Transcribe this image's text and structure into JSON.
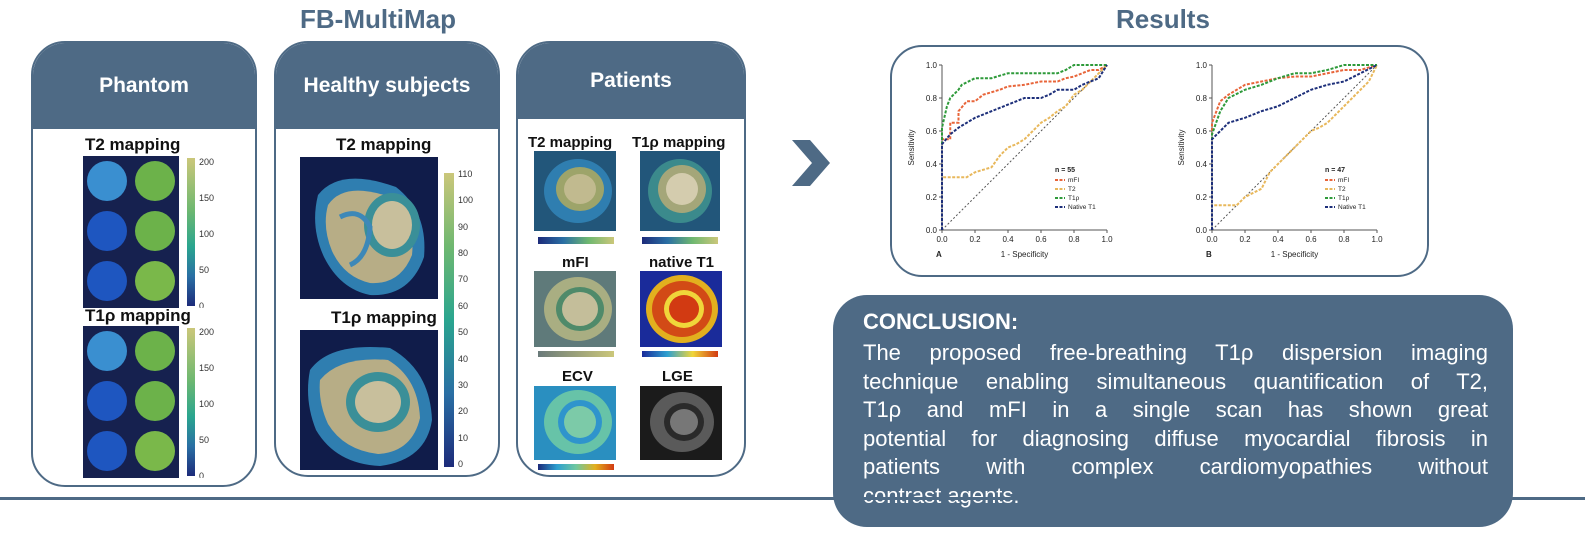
{
  "titles": {
    "left": "FB-MultiMap",
    "right": "Results"
  },
  "phantom": {
    "header": "Phantom",
    "t2_label": "T2 mapping",
    "t1rho_label": "T1ρ mapping",
    "colorbar_ticks": [
      "200",
      "150",
      "100",
      "50",
      "0"
    ],
    "vials": [
      [
        "#3a8fd0",
        "#6cb24a"
      ],
      [
        "#1e56c0",
        "#6cb24a"
      ],
      [
        "#1e56c0",
        "#7ab84a"
      ]
    ]
  },
  "healthy": {
    "header": "Healthy subjects",
    "t2_label": "T2 mapping",
    "t1rho_label": "T1ρ mapping",
    "colorbar_ticks": [
      "110",
      "100",
      "90",
      "80",
      "70",
      "60",
      "50",
      "40",
      "30",
      "20",
      "10",
      "0"
    ]
  },
  "patients": {
    "header": "Patients",
    "labels": [
      "T2 mapping",
      "T1ρ mapping",
      "mFI",
      "native T1",
      "ECV",
      "LGE"
    ]
  },
  "results": {
    "legend_items": [
      "mFI",
      "T2",
      "T1ρ",
      "Native T1"
    ],
    "legend_colors": [
      "#e8653a",
      "#e8b85c",
      "#2e9a3a",
      "#1d2f7a"
    ]
  },
  "conclusion": {
    "heading": "CONCLUSION:",
    "lines": [
      "The proposed free-breathing T1ρ dispersion imaging",
      "technique enabling simultaneous quantification of T2,",
      "T1ρ and mFI in a single scan has shown great",
      "potential for diagnosing diffuse myocardial fibrosis in",
      "patients with complex cardiomyopathies without",
      "contrast agents."
    ]
  },
  "chart_data": [
    {
      "type": "line",
      "panel_label": "A",
      "n_label": "n = 55",
      "xlabel": "1 - Specificity",
      "ylabel": "Sensitivity",
      "xlim": [
        0,
        1
      ],
      "ylim": [
        0,
        1
      ],
      "xticks": [
        "0.0",
        "0.2",
        "0.4",
        "0.6",
        "0.8",
        "1.0"
      ],
      "yticks": [
        "0.0",
        "0.2",
        "0.4",
        "0.6",
        "0.8",
        "1.0"
      ],
      "legend": [
        "mFI",
        "T2",
        "T1ρ",
        "Native T1"
      ],
      "series": [
        {
          "name": "mFI",
          "x": [
            0,
            0,
            0.05,
            0.05,
            0.1,
            0.1,
            0.15,
            0.2,
            0.25,
            0.35,
            0.4,
            0.5,
            0.6,
            0.7,
            0.75,
            0.8,
            0.85,
            0.9,
            0.95,
            1
          ],
          "y": [
            0,
            0.55,
            0.55,
            0.65,
            0.65,
            0.72,
            0.78,
            0.78,
            0.82,
            0.85,
            0.87,
            0.88,
            0.9,
            0.9,
            0.92,
            0.93,
            0.95,
            0.97,
            0.97,
            1
          ]
        },
        {
          "name": "T2",
          "x": [
            0,
            0,
            0.15,
            0.2,
            0.3,
            0.35,
            0.4,
            0.45,
            0.5,
            0.55,
            0.6,
            0.65,
            0.7,
            0.75,
            0.8,
            0.85,
            0.9,
            0.95,
            1
          ],
          "y": [
            0,
            0.32,
            0.32,
            0.35,
            0.38,
            0.45,
            0.5,
            0.52,
            0.55,
            0.6,
            0.65,
            0.68,
            0.72,
            0.75,
            0.82,
            0.85,
            0.9,
            0.95,
            1
          ]
        },
        {
          "name": "T1ρ",
          "x": [
            0,
            0,
            0.03,
            0.05,
            0.1,
            0.12,
            0.2,
            0.3,
            0.4,
            0.5,
            0.6,
            0.7,
            0.75,
            0.8,
            0.9,
            1
          ],
          "y": [
            0,
            0.62,
            0.75,
            0.8,
            0.85,
            0.88,
            0.92,
            0.92,
            0.95,
            0.95,
            0.95,
            0.95,
            0.97,
            1,
            1,
            1
          ]
        },
        {
          "name": "Native T1",
          "x": [
            0,
            0,
            0.05,
            0.1,
            0.15,
            0.2,
            0.3,
            0.4,
            0.5,
            0.6,
            0.65,
            0.7,
            0.8,
            0.85,
            0.9,
            0.95,
            1
          ],
          "y": [
            0,
            0.52,
            0.58,
            0.62,
            0.65,
            0.68,
            0.72,
            0.76,
            0.8,
            0.8,
            0.82,
            0.85,
            0.85,
            0.88,
            0.9,
            0.92,
            1
          ]
        }
      ]
    },
    {
      "type": "line",
      "panel_label": "B",
      "n_label": "n = 47",
      "xlabel": "1 - Specificity",
      "ylabel": "Sensitivity",
      "xlim": [
        0,
        1
      ],
      "ylim": [
        0,
        1
      ],
      "xticks": [
        "0.0",
        "0.2",
        "0.4",
        "0.6",
        "0.8",
        "1.0"
      ],
      "yticks": [
        "0.0",
        "0.2",
        "0.4",
        "0.6",
        "0.8",
        "1.0"
      ],
      "legend": [
        "mFI",
        "T2",
        "T1ρ",
        "Native T1"
      ],
      "series": [
        {
          "name": "mFI",
          "x": [
            0,
            0,
            0.05,
            0.1,
            0.15,
            0.2,
            0.3,
            0.4,
            0.5,
            0.6,
            0.7,
            0.8,
            0.9,
            1
          ],
          "y": [
            0,
            0.65,
            0.78,
            0.82,
            0.85,
            0.88,
            0.9,
            0.92,
            0.93,
            0.93,
            0.95,
            0.97,
            0.97,
            1
          ]
        },
        {
          "name": "T2",
          "x": [
            0,
            0,
            0.15,
            0.2,
            0.3,
            0.35,
            0.4,
            0.45,
            0.5,
            0.55,
            0.6,
            0.65,
            0.7,
            0.75,
            0.8,
            0.85,
            0.9,
            0.95,
            1
          ],
          "y": [
            0,
            0.15,
            0.15,
            0.2,
            0.25,
            0.35,
            0.4,
            0.45,
            0.5,
            0.55,
            0.6,
            0.62,
            0.65,
            0.7,
            0.75,
            0.8,
            0.85,
            0.9,
            1
          ]
        },
        {
          "name": "T1ρ",
          "x": [
            0,
            0,
            0.05,
            0.1,
            0.2,
            0.3,
            0.4,
            0.5,
            0.6,
            0.7,
            0.8,
            0.9,
            1
          ],
          "y": [
            0,
            0.58,
            0.72,
            0.8,
            0.85,
            0.88,
            0.92,
            0.95,
            0.95,
            0.97,
            1,
            1,
            1
          ]
        },
        {
          "name": "Native T1",
          "x": [
            0,
            0,
            0.05,
            0.1,
            0.2,
            0.3,
            0.4,
            0.5,
            0.6,
            0.7,
            0.8,
            0.9,
            1
          ],
          "y": [
            0,
            0.55,
            0.6,
            0.65,
            0.68,
            0.72,
            0.75,
            0.8,
            0.85,
            0.88,
            0.9,
            0.95,
            1
          ]
        }
      ]
    }
  ]
}
